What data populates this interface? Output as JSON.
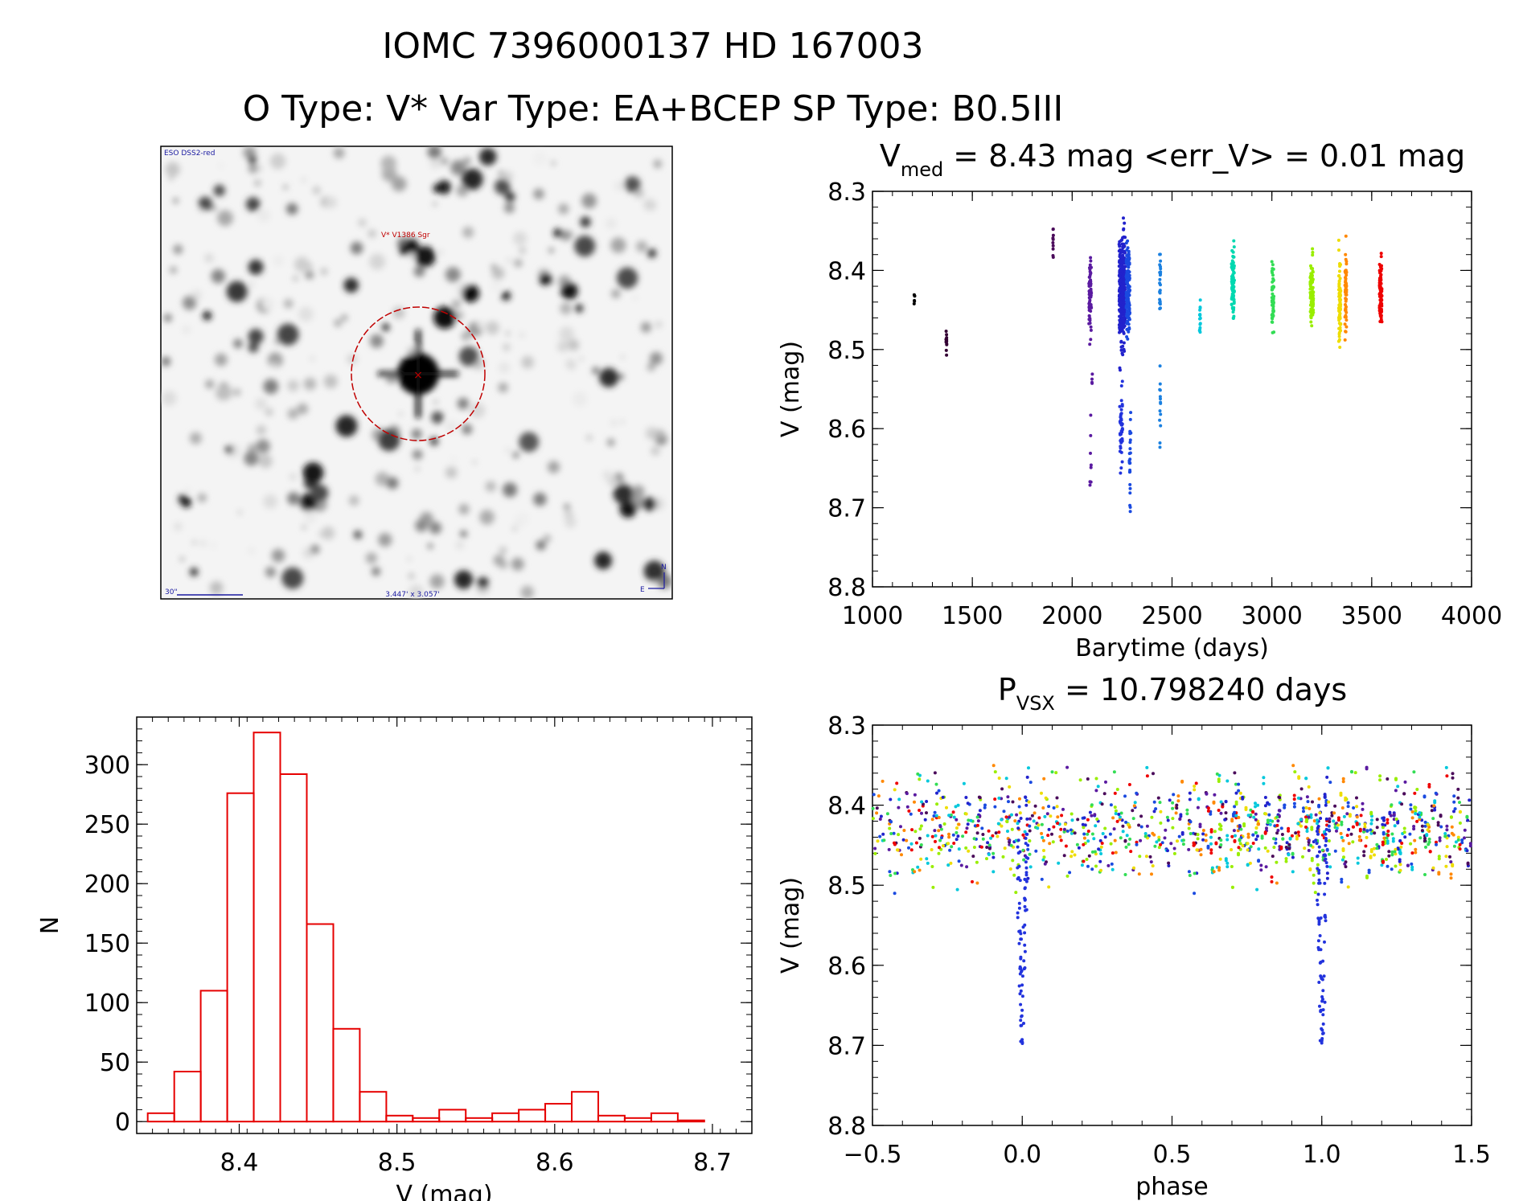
{
  "header": {
    "title": "IOMC 7396000137   HD 167003",
    "subtitle": "O Type: V*  Var Type: EA+BCEP  SP Type: B0.5III"
  },
  "finder": {
    "survey_label": "ESO DSS2-red",
    "target_label": "V* V1386 Sgr",
    "scale_label": "30\"",
    "fov_label": "3.447' x 3.057'",
    "compass_n": "N",
    "compass_e": "E"
  },
  "colors": {
    "histogram": "#e60000",
    "frame": "#000000",
    "marker_circle": "#c00000",
    "label_blue": "#1a1aa0"
  },
  "chart_data": [
    {
      "id": "light_curve",
      "type": "scatter",
      "title_main": "V",
      "title_sub": "med",
      "title_rest": " = 8.43 mag <err_V> = 0.01 mag",
      "xlabel": "Barytime (days)",
      "ylabel": "V (mag)",
      "xlim": [
        1000,
        4000
      ],
      "ylim": [
        8.8,
        8.3
      ],
      "x_ticks": [
        1000,
        1500,
        2000,
        2500,
        3000,
        3500,
        4000
      ],
      "y_ticks": [
        8.3,
        8.4,
        8.5,
        8.6,
        8.7,
        8.8
      ],
      "x_tick_labels": [
        "1000",
        "1500",
        "2000",
        "2500",
        "3000",
        "3500",
        "4000"
      ],
      "y_tick_labels": [
        "8.3",
        "8.4",
        "8.5",
        "8.6",
        "8.7",
        "8.8"
      ],
      "color_scale": "rainbow by time",
      "clusters": [
        {
          "t": 1210,
          "dt": 4,
          "v": 8.435,
          "sd": 0.003,
          "n": 6,
          "color": "#000000"
        },
        {
          "t": 1370,
          "dt": 4,
          "v": 8.485,
          "sd": 0.01,
          "n": 12,
          "color": "#330033"
        },
        {
          "t": 1905,
          "dt": 4,
          "v": 8.37,
          "sd": 0.012,
          "n": 10,
          "color": "#4a0a5a"
        },
        {
          "t": 2090,
          "dt": 12,
          "v": 8.43,
          "sd": 0.03,
          "n": 70,
          "color": "#5a1aa0"
        },
        {
          "t": 2092,
          "dt": 8,
          "v": 8.64,
          "sd": 0.02,
          "n": 8,
          "color": "#5a1aa0"
        },
        {
          "t": 2098,
          "dt": 6,
          "v": 8.53,
          "sd": 0.01,
          "n": 4,
          "color": "#5a1aa0"
        },
        {
          "t": 2250,
          "dt": 30,
          "v": 8.425,
          "sd": 0.032,
          "n": 360,
          "color": "#2222cc"
        },
        {
          "t": 2245,
          "dt": 14,
          "v": 8.6,
          "sd": 0.03,
          "n": 45,
          "color": "#2233dd"
        },
        {
          "t": 2290,
          "dt": 8,
          "v": 8.645,
          "sd": 0.025,
          "n": 24,
          "color": "#1a4ae0"
        },
        {
          "t": 2280,
          "dt": 18,
          "v": 8.42,
          "sd": 0.03,
          "n": 160,
          "color": "#1a4ae0"
        },
        {
          "t": 2440,
          "dt": 5,
          "v": 8.42,
          "sd": 0.02,
          "n": 25,
          "color": "#1a80e0"
        },
        {
          "t": 2440,
          "dt": 5,
          "v": 8.575,
          "sd": 0.03,
          "n": 14,
          "color": "#1a80e0"
        },
        {
          "t": 2640,
          "dt": 5,
          "v": 8.455,
          "sd": 0.012,
          "n": 15,
          "color": "#00c8dc"
        },
        {
          "t": 2805,
          "dt": 14,
          "v": 8.415,
          "sd": 0.02,
          "n": 90,
          "color": "#00d8b0"
        },
        {
          "t": 3005,
          "dt": 10,
          "v": 8.435,
          "sd": 0.02,
          "n": 55,
          "color": "#33dd55"
        },
        {
          "t": 3200,
          "dt": 16,
          "v": 8.425,
          "sd": 0.02,
          "n": 90,
          "color": "#99ee00"
        },
        {
          "t": 3340,
          "dt": 10,
          "v": 8.445,
          "sd": 0.025,
          "n": 70,
          "color": "#eedd00"
        },
        {
          "t": 3370,
          "dt": 8,
          "v": 8.43,
          "sd": 0.025,
          "n": 60,
          "color": "#ff8800"
        },
        {
          "t": 3545,
          "dt": 12,
          "v": 8.425,
          "sd": 0.02,
          "n": 80,
          "color": "#ee0000"
        }
      ]
    },
    {
      "id": "histogram",
      "type": "bar",
      "title": "",
      "xlabel": "V (mag)",
      "ylabel": "N",
      "xlim": [
        8.335,
        8.725
      ],
      "ylim": [
        -10,
        340
      ],
      "x_ticks": [
        8.4,
        8.5,
        8.6,
        8.7
      ],
      "y_ticks": [
        0,
        50,
        100,
        150,
        200,
        250,
        300
      ],
      "x_tick_labels": [
        "8.4",
        "8.5",
        "8.6",
        "8.7"
      ],
      "y_tick_labels": [
        "0",
        "50",
        "100",
        "150",
        "200",
        "250",
        "300"
      ],
      "bin_start": 8.342,
      "bin_width": 0.0168,
      "values": [
        7,
        42,
        110,
        276,
        327,
        292,
        166,
        78,
        25,
        5,
        3,
        10,
        3,
        7,
        10,
        15,
        25,
        5,
        3,
        7,
        1
      ]
    },
    {
      "id": "phase_curve",
      "type": "scatter",
      "title_main": "P",
      "title_sub": "VSX",
      "title_rest": " = 10.798240 days",
      "xlabel": "phase",
      "ylabel": "V (mag)",
      "xlim": [
        -0.5,
        1.5
      ],
      "ylim": [
        8.8,
        8.3
      ],
      "x_ticks": [
        -0.5,
        0.0,
        0.5,
        1.0,
        1.5
      ],
      "y_ticks": [
        8.3,
        8.4,
        8.5,
        8.6,
        8.7,
        8.8
      ],
      "x_tick_labels": [
        "−0.5",
        "0.0",
        "0.5",
        "1.0",
        "1.5"
      ],
      "y_tick_labels": [
        "8.3",
        "8.4",
        "8.5",
        "8.6",
        "8.7",
        "8.8"
      ],
      "period_days": 10.79824,
      "eclipse_phase": 0.0,
      "eclipse_depth_mag": 8.7,
      "baseline_mag": 8.43,
      "baseline_spread": 0.03,
      "palette": [
        "#2222cc",
        "#1a4ae0",
        "#5a1aa0",
        "#00c8dc",
        "#33dd55",
        "#99ee00",
        "#eedd00",
        "#ff8800",
        "#ee0000",
        "#4a0a5a"
      ]
    }
  ]
}
